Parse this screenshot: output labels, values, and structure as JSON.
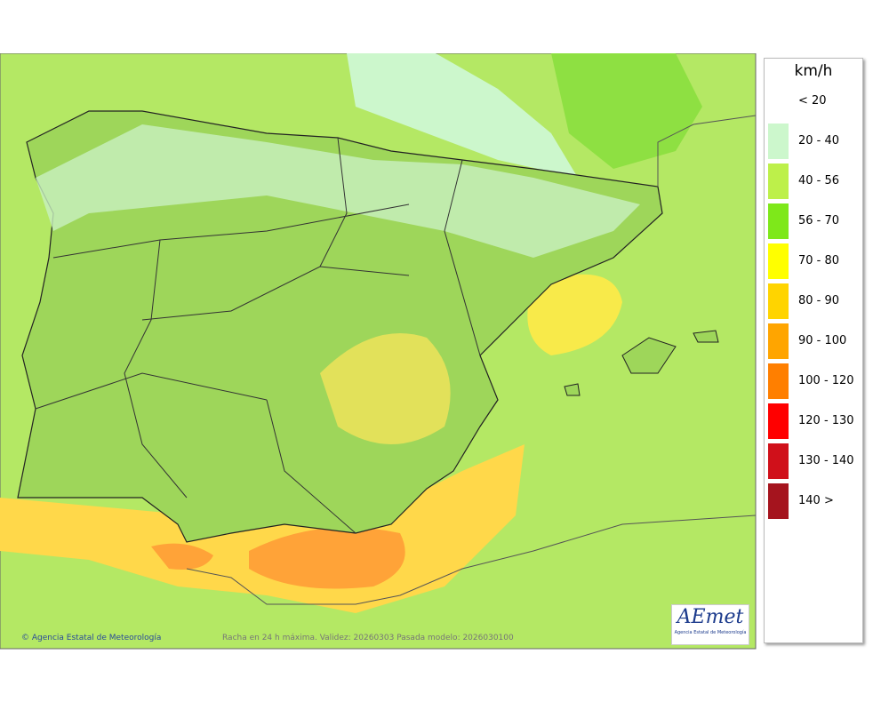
{
  "legend": {
    "title": "km/h",
    "items": [
      {
        "label": "< 20"
      },
      {
        "label": "20 - 40",
        "color": "#ccf7cc"
      },
      {
        "label": "40 - 56",
        "color": "#bdf04a"
      },
      {
        "label": "56 - 70",
        "color": "#7ee81a"
      },
      {
        "label": "70 - 80",
        "color": "#ffff00"
      },
      {
        "label": "80 - 90",
        "color": "#ffd400"
      },
      {
        "label": "90 - 100",
        "color": "#ffa500"
      },
      {
        "label": "100 - 120",
        "color": "#ff7f00"
      },
      {
        "label": "120 - 130",
        "color": "#ff0000"
      },
      {
        "label": "130 - 140",
        "color": "#d0101a"
      },
      {
        "label": "140 >",
        "color": "#a5141e"
      }
    ]
  },
  "footer": {
    "credit": "Agencia Estatal de Meteorología",
    "caption": "Racha en 24 h máxima. Validez: 20260303 Pasada modelo: 2026030100"
  },
  "logo": {
    "text": "AEmet",
    "subtitle": "Agencia Estatal de Meteorología"
  }
}
